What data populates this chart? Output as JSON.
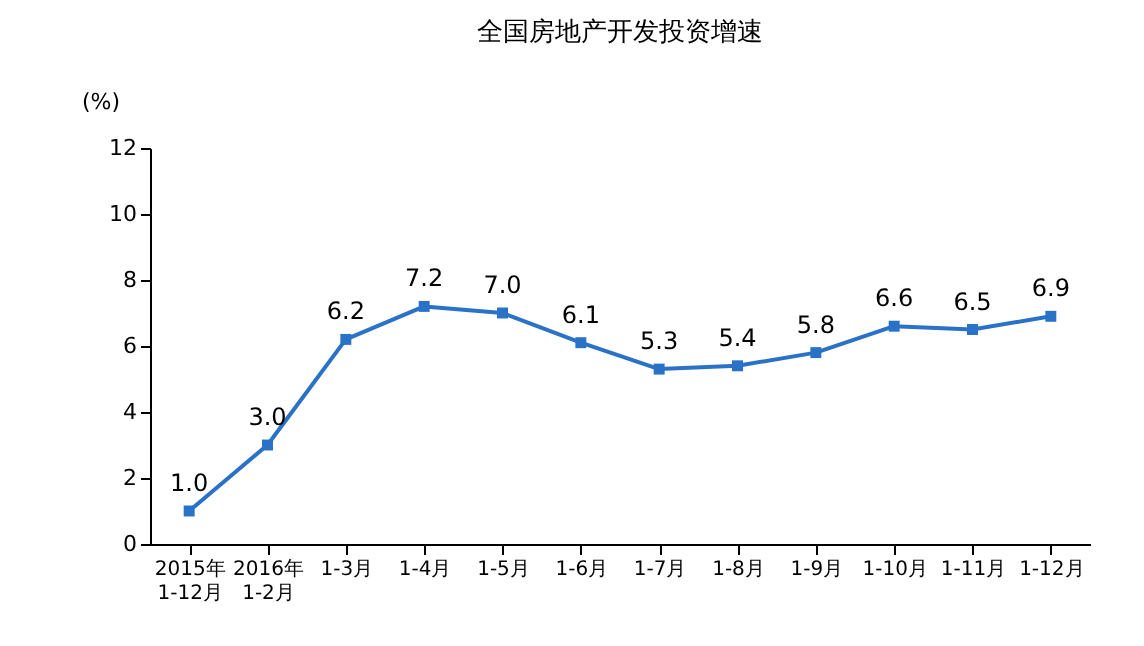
{
  "chart_data": {
    "type": "line",
    "title": "全国房地产开发投资增速",
    "ylabel": "(%)",
    "categories": [
      "2015年\n1-12月",
      "2016年\n1-2月",
      "1-3月",
      "1-4月",
      "1-5月",
      "1-6月",
      "1-7月",
      "1-8月",
      "1-9月",
      "1-10月",
      "1-11月",
      "1-12月"
    ],
    "series": [
      {
        "color": "#2a72c8",
        "values": [
          1.0,
          3.0,
          6.2,
          7.2,
          7.0,
          6.1,
          5.3,
          5.4,
          5.8,
          6.6,
          6.5,
          6.9
        ],
        "value_labels": [
          "1.0",
          "3.0",
          "6.2",
          "7.2",
          "7.0",
          "6.1",
          "5.3",
          "5.4",
          "5.8",
          "6.6",
          "6.5",
          "6.9"
        ]
      }
    ],
    "ylim": [
      0,
      12
    ],
    "yticks": [
      0,
      2,
      4,
      6,
      8,
      10,
      12
    ],
    "grid": false,
    "marker": "square",
    "line_style": "solid"
  }
}
